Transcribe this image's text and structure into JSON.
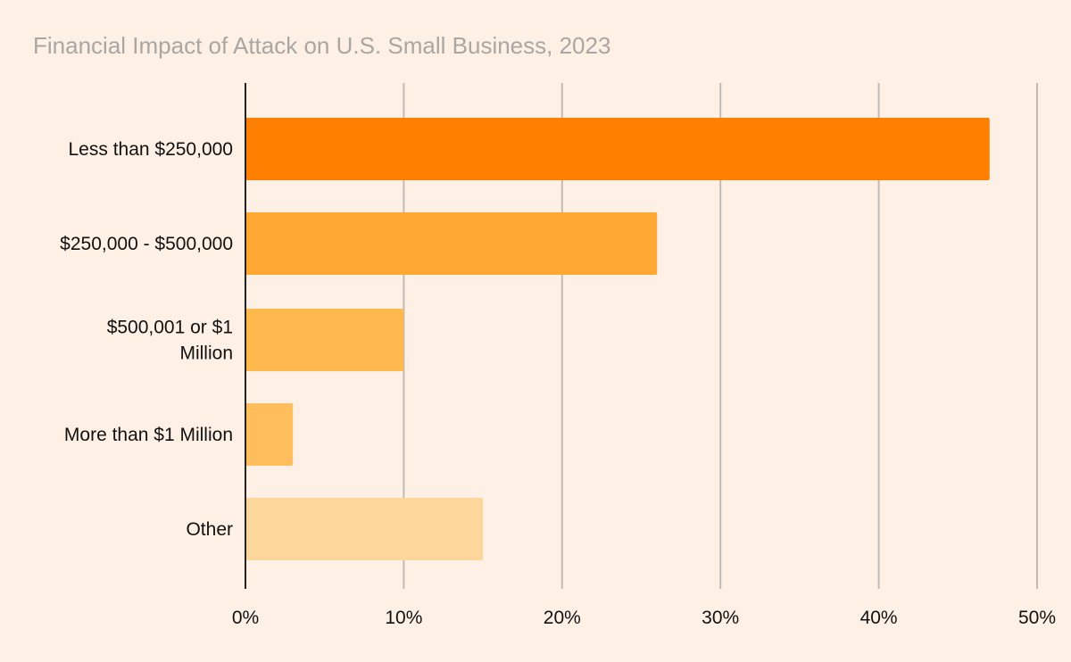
{
  "chart_data": {
    "type": "bar",
    "orientation": "horizontal",
    "title": "Financial Impact of Attack on U.S. Small Business, 2023",
    "categories": [
      [
        "Less than $250,000"
      ],
      [
        "$250,000 - $500,000"
      ],
      [
        "$500,001 or $1",
        "Million"
      ],
      [
        "More than $1 Million"
      ],
      [
        "Other"
      ]
    ],
    "values": [
      47,
      26,
      10,
      3,
      15
    ],
    "colors": [
      "#ff8000",
      "#ffa733",
      "#ffb84d",
      "#ffbe5c",
      "#fdd69b"
    ],
    "xlim": [
      0,
      50
    ],
    "xticks": [
      0,
      10,
      20,
      30,
      40,
      50
    ],
    "xtick_labels": [
      "0%",
      "10%",
      "20%",
      "30%",
      "40%",
      "50%"
    ],
    "grid": "vertical",
    "legend": "none",
    "xlabel": "",
    "ylabel": ""
  }
}
